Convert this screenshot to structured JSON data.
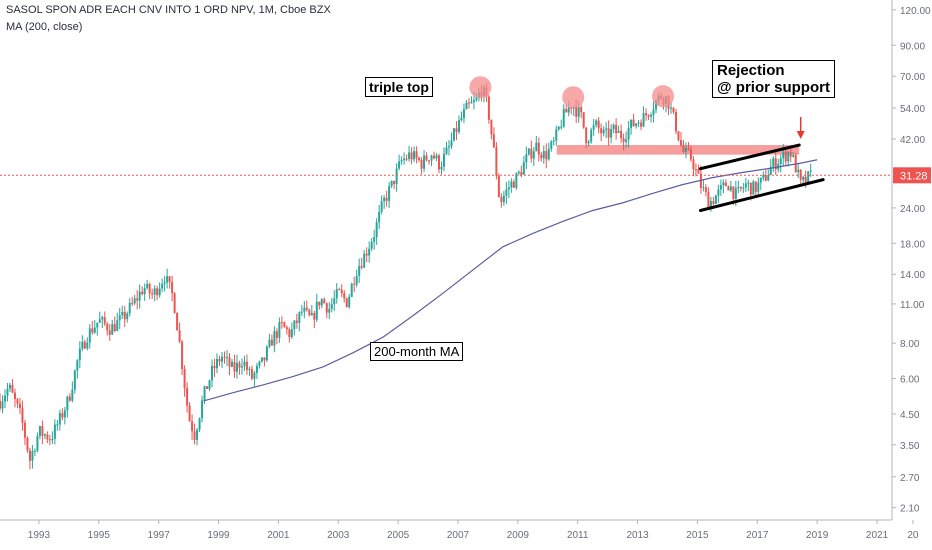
{
  "header": {
    "title": "SASOL SPON ADR EACH CNV INTO 1 ORD NPV, 1M, Cboe BZX",
    "indicator": "MA (200, close)"
  },
  "annotations": {
    "triple_top": "triple top",
    "ma_label": "200-month MA",
    "rejection_line1": "Rejection",
    "rejection_line2": "@ prior support"
  },
  "colors": {
    "up": "#26a69a",
    "down": "#ef5350",
    "ma": "#5c5ea0",
    "highlight": "#f48c8c",
    "price_line": "#ef5350",
    "axis_text": "#6a6d78"
  },
  "chart_data": {
    "type": "candlestick",
    "symbol": "SASOL SPON ADR EACH CNV INTO 1 ORD NPV",
    "interval": "1M",
    "scale": "log",
    "ylim": [
      1.9,
      130
    ],
    "xlim": [
      1992.2,
      2022.0
    ],
    "y_ticks": [
      "2.10",
      "2.70",
      "3.50",
      "4.50",
      "6.00",
      "8.00",
      "11.00",
      "14.00",
      "18.00",
      "24.00",
      "31.28",
      "42.00",
      "54.00",
      "70.00",
      "90.00",
      "120.00"
    ],
    "x_ticks": [
      "1993",
      "1995",
      "1997",
      "1999",
      "2001",
      "2003",
      "2005",
      "2007",
      "2009",
      "2011",
      "2013",
      "2015",
      "2017",
      "2019",
      "2021",
      "20"
    ],
    "last_price": 31.28,
    "price_path": [
      [
        1992.2,
        5.0
      ],
      [
        1992.5,
        5.6
      ],
      [
        1992.9,
        4.4
      ],
      [
        1993.2,
        3.1
      ],
      [
        1993.5,
        3.9
      ],
      [
        1993.9,
        3.7
      ],
      [
        1994.2,
        4.3
      ],
      [
        1994.5,
        5.1
      ],
      [
        1994.8,
        7.0
      ],
      [
        1995.1,
        8.5
      ],
      [
        1995.5,
        9.6
      ],
      [
        1995.9,
        9.0
      ],
      [
        1996.3,
        9.8
      ],
      [
        1996.7,
        11.2
      ],
      [
        1997.0,
        12.6
      ],
      [
        1997.3,
        11.8
      ],
      [
        1997.7,
        13.8
      ],
      [
        1998.0,
        11.5
      ],
      [
        1998.2,
        8.0
      ],
      [
        1998.5,
        4.4
      ],
      [
        1998.7,
        3.8
      ],
      [
        1999.0,
        5.2
      ],
      [
        1999.3,
        6.4
      ],
      [
        1999.6,
        7.2
      ],
      [
        2000.0,
        6.4
      ],
      [
        2000.3,
        7.0
      ],
      [
        2000.6,
        6.0
      ],
      [
        2001.0,
        6.9
      ],
      [
        2001.3,
        8.3
      ],
      [
        2001.6,
        9.2
      ],
      [
        2001.9,
        8.6
      ],
      [
        2002.3,
        10.4
      ],
      [
        2002.6,
        9.6
      ],
      [
        2002.9,
        11.5
      ],
      [
        2003.2,
        10.6
      ],
      [
        2003.5,
        12.0
      ],
      [
        2003.8,
        11.2
      ],
      [
        2004.1,
        14.5
      ],
      [
        2004.4,
        16.5
      ],
      [
        2004.7,
        19.5
      ],
      [
        2005.0,
        25.0
      ],
      [
        2005.3,
        29.0
      ],
      [
        2005.6,
        35.0
      ],
      [
        2005.9,
        37.0
      ],
      [
        2006.3,
        34.5
      ],
      [
        2006.6,
        37.5
      ],
      [
        2006.9,
        34.0
      ],
      [
        2007.2,
        39.0
      ],
      [
        2007.5,
        47.0
      ],
      [
        2007.8,
        54.0
      ],
      [
        2008.1,
        57.0
      ],
      [
        2008.3,
        64.0
      ],
      [
        2008.5,
        54.0
      ],
      [
        2008.7,
        38.0
      ],
      [
        2008.9,
        25.0
      ],
      [
        2009.2,
        28.5
      ],
      [
        2009.5,
        31.0
      ],
      [
        2009.8,
        36.0
      ],
      [
        2010.1,
        40.0
      ],
      [
        2010.4,
        36.5
      ],
      [
        2010.7,
        40.5
      ],
      [
        2011.0,
        50.0
      ],
      [
        2011.3,
        56.0
      ],
      [
        2011.6,
        51.0
      ],
      [
        2011.8,
        42.0
      ],
      [
        2012.1,
        47.0
      ],
      [
        2012.4,
        43.0
      ],
      [
        2012.7,
        45.0
      ],
      [
        2013.0,
        43.0
      ],
      [
        2013.3,
        47.0
      ],
      [
        2013.7,
        50.0
      ],
      [
        2014.0,
        55.0
      ],
      [
        2014.3,
        60.0
      ],
      [
        2014.5,
        58.0
      ],
      [
        2014.8,
        46.0
      ],
      [
        2015.0,
        38.0
      ],
      [
        2015.3,
        36.0
      ],
      [
        2015.6,
        29.0
      ],
      [
        2015.9,
        25.0
      ],
      [
        2016.2,
        27.0
      ],
      [
        2016.5,
        29.5
      ],
      [
        2016.8,
        26.5
      ],
      [
        2017.1,
        29.0
      ],
      [
        2017.4,
        28.0
      ],
      [
        2017.7,
        30.0
      ],
      [
        2018.0,
        34.0
      ],
      [
        2018.3,
        36.0
      ],
      [
        2018.6,
        38.0
      ],
      [
        2018.8,
        33.0
      ],
      [
        2018.95,
        29.0
      ],
      [
        2019.1,
        30.0
      ],
      [
        2019.3,
        31.28
      ]
    ],
    "ma_200": [
      [
        1999.0,
        5.0
      ],
      [
        2000.0,
        5.35
      ],
      [
        2001.0,
        5.7
      ],
      [
        2002.0,
        6.1
      ],
      [
        2003.0,
        6.6
      ],
      [
        2004.0,
        7.4
      ],
      [
        2005.0,
        8.4
      ],
      [
        2006.0,
        10.0
      ],
      [
        2007.0,
        12.0
      ],
      [
        2008.0,
        14.5
      ],
      [
        2009.0,
        17.5
      ],
      [
        2010.0,
        19.5
      ],
      [
        2011.0,
        21.5
      ],
      [
        2012.0,
        23.5
      ],
      [
        2013.0,
        25.0
      ],
      [
        2014.0,
        27.0
      ],
      [
        2015.0,
        29.0
      ],
      [
        2016.0,
        30.7
      ],
      [
        2017.0,
        32.0
      ],
      [
        2018.0,
        33.2
      ],
      [
        2019.0,
        34.6
      ],
      [
        2019.5,
        35.5
      ]
    ],
    "resistance_band": {
      "x": [
        2010.8,
        2018.9
      ],
      "y": [
        37.0,
        40.0
      ]
    },
    "channel_upper": [
      [
        2015.6,
        33.0
      ],
      [
        2018.9,
        40.0
      ]
    ],
    "channel_lower": [
      [
        2015.6,
        23.5
      ],
      [
        2019.7,
        30.2
      ]
    ],
    "triple_top_markers": [
      [
        2008.25,
        64.0
      ],
      [
        2011.35,
        59.0
      ],
      [
        2014.35,
        59.5
      ]
    ],
    "rejection_arrow": [
      2018.95,
      42.0
    ]
  }
}
